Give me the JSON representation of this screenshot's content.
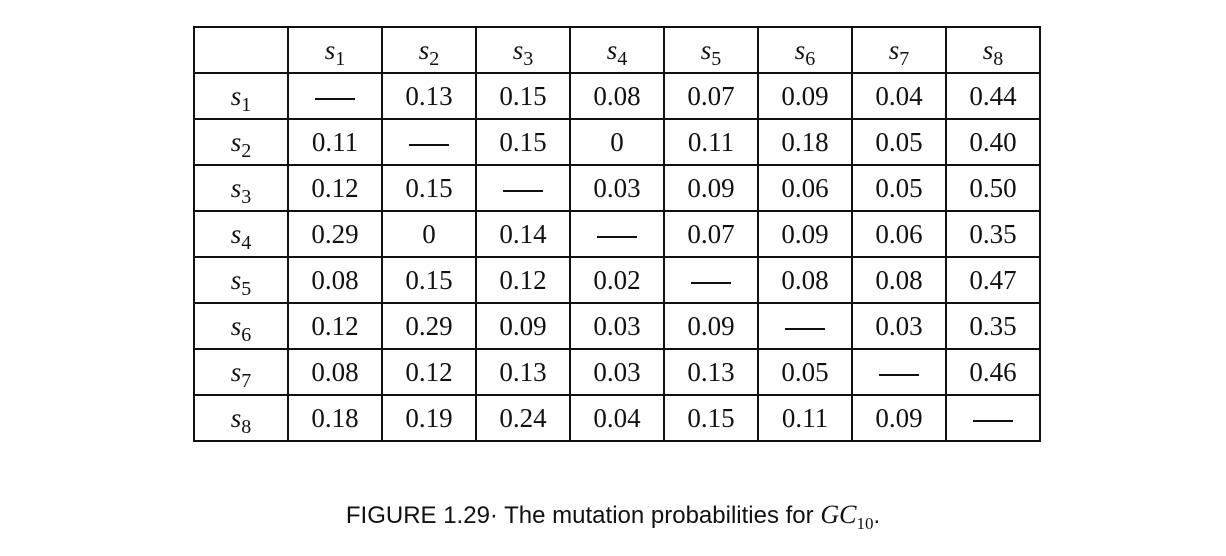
{
  "table": {
    "columns": [
      {
        "base": "s",
        "sub": "1"
      },
      {
        "base": "s",
        "sub": "2"
      },
      {
        "base": "s",
        "sub": "3"
      },
      {
        "base": "s",
        "sub": "4"
      },
      {
        "base": "s",
        "sub": "5"
      },
      {
        "base": "s",
        "sub": "6"
      },
      {
        "base": "s",
        "sub": "7"
      },
      {
        "base": "s",
        "sub": "8"
      }
    ],
    "rows": [
      {
        "label": {
          "base": "s",
          "sub": "1"
        },
        "cells": [
          "—",
          "0.13",
          "0.15",
          "0.08",
          "0.07",
          "0.09",
          "0.04",
          "0.44"
        ]
      },
      {
        "label": {
          "base": "s",
          "sub": "2"
        },
        "cells": [
          "0.11",
          "—",
          "0.15",
          "0",
          "0.11",
          "0.18",
          "0.05",
          "0.40"
        ]
      },
      {
        "label": {
          "base": "s",
          "sub": "3"
        },
        "cells": [
          "0.12",
          "0.15",
          "—",
          "0.03",
          "0.09",
          "0.06",
          "0.05",
          "0.50"
        ]
      },
      {
        "label": {
          "base": "s",
          "sub": "4"
        },
        "cells": [
          "0.29",
          "0",
          "0.14",
          "—",
          "0.07",
          "0.09",
          "0.06",
          "0.35"
        ]
      },
      {
        "label": {
          "base": "s",
          "sub": "5"
        },
        "cells": [
          "0.08",
          "0.15",
          "0.12",
          "0.02",
          "—",
          "0.08",
          "0.08",
          "0.47"
        ]
      },
      {
        "label": {
          "base": "s",
          "sub": "6"
        },
        "cells": [
          "0.12",
          "0.29",
          "0.09",
          "0.03",
          "0.09",
          "—",
          "0.03",
          "0.35"
        ]
      },
      {
        "label": {
          "base": "s",
          "sub": "7"
        },
        "cells": [
          "0.08",
          "0.12",
          "0.13",
          "0.03",
          "0.13",
          "0.05",
          "—",
          "0.46"
        ]
      },
      {
        "label": {
          "base": "s",
          "sub": "8"
        },
        "cells": [
          "0.18",
          "0.19",
          "0.24",
          "0.04",
          "0.15",
          "0.11",
          "0.09",
          "—"
        ]
      }
    ]
  },
  "caption": {
    "prefix": "FIGURE 1.29· The mutation probabilities for ",
    "math_base": "GC",
    "math_sub": "10",
    "suffix": "."
  }
}
